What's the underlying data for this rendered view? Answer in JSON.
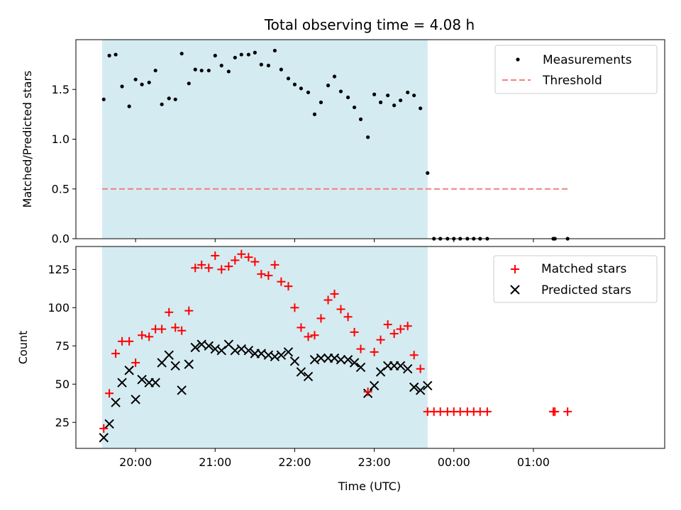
{
  "chart_data": [
    {
      "type": "scatter",
      "title": "Total observing time = 4.08 h",
      "ylabel": "Matched/Predicted stars",
      "ylim": [
        0,
        2.0
      ],
      "yticks": [
        0.0,
        0.5,
        1.0,
        1.5
      ],
      "ytick_labels": [
        "0.0",
        "0.5",
        "1.0",
        "1.5"
      ],
      "xlim_hours": [
        19.25,
        26.65
      ],
      "shaded_span_hours": [
        19.58,
        23.67
      ],
      "shade_color": "#d4ebf1",
      "legend": {
        "placement": "top-right",
        "entries": [
          "Measurements",
          "Threshold"
        ]
      },
      "series": [
        {
          "name": "Measurements",
          "marker": "dot",
          "color": "#000000",
          "x_hours": [
            19.6,
            19.67,
            19.75,
            19.83,
            19.92,
            20.0,
            20.08,
            20.17,
            20.25,
            20.33,
            20.42,
            20.5,
            20.58,
            20.67,
            20.75,
            20.83,
            20.92,
            21.0,
            21.08,
            21.17,
            21.25,
            21.33,
            21.42,
            21.5,
            21.58,
            21.67,
            21.75,
            21.83,
            21.92,
            22.0,
            22.08,
            22.17,
            22.25,
            22.33,
            22.42,
            22.5,
            22.58,
            22.67,
            22.75,
            22.83,
            22.92,
            23.0,
            23.08,
            23.17,
            23.25,
            23.33,
            23.42,
            23.5,
            23.58,
            23.67,
            23.75,
            23.83,
            23.92,
            24.0,
            24.08,
            24.17,
            24.25,
            24.33,
            24.42,
            25.25,
            25.27,
            25.43
          ],
          "y": [
            1.4,
            1.84,
            1.85,
            1.53,
            1.33,
            1.6,
            1.55,
            1.57,
            1.69,
            1.35,
            1.41,
            1.4,
            1.86,
            1.56,
            1.7,
            1.69,
            1.69,
            1.84,
            1.74,
            1.68,
            1.82,
            1.85,
            1.85,
            1.87,
            1.75,
            1.74,
            1.89,
            1.7,
            1.61,
            1.55,
            1.51,
            1.47,
            1.25,
            1.37,
            1.54,
            1.63,
            1.48,
            1.42,
            1.32,
            1.2,
            1.02,
            1.45,
            1.37,
            1.44,
            1.34,
            1.39,
            1.47,
            1.44,
            1.31,
            0.66,
            0.0,
            0.0,
            0.0,
            0.0,
            0.0,
            0.0,
            0.0,
            0.0,
            0.0,
            0.0,
            0.0,
            0.0
          ]
        },
        {
          "name": "Threshold",
          "style": "dashed",
          "color": "#f08080",
          "x_hours": [
            19.58,
            25.43
          ],
          "y": [
            0.5,
            0.5
          ]
        }
      ]
    },
    {
      "type": "scatter",
      "xlabel": "Time (UTC)",
      "ylabel": "Count",
      "ylim": [
        8,
        140
      ],
      "yticks": [
        25,
        50,
        75,
        100,
        125
      ],
      "ytick_labels": [
        "25",
        "50",
        "75",
        "100",
        "125"
      ],
      "xlim_hours": [
        19.25,
        26.65
      ],
      "xticks_hours": [
        20,
        21,
        22,
        23,
        24,
        25
      ],
      "xtick_labels": [
        "20:00",
        "21:00",
        "22:00",
        "23:00",
        "00:00",
        "01:00"
      ],
      "shaded_span_hours": [
        19.58,
        23.67
      ],
      "shade_color": "#d4ebf1",
      "legend": {
        "placement": "top-right",
        "entries": [
          "Matched stars",
          "Predicted stars"
        ]
      },
      "series": [
        {
          "name": "Matched stars",
          "marker": "plus",
          "color": "#ff0000",
          "x_hours": [
            19.6,
            19.67,
            19.75,
            19.83,
            19.92,
            20.0,
            20.08,
            20.17,
            20.25,
            20.33,
            20.42,
            20.5,
            20.58,
            20.67,
            20.75,
            20.83,
            20.92,
            21.0,
            21.08,
            21.17,
            21.25,
            21.33,
            21.42,
            21.5,
            21.58,
            21.67,
            21.75,
            21.83,
            21.92,
            22.0,
            22.08,
            22.17,
            22.25,
            22.33,
            22.42,
            22.5,
            22.58,
            22.67,
            22.75,
            22.83,
            22.92,
            23.0,
            23.08,
            23.17,
            23.25,
            23.33,
            23.42,
            23.5,
            23.58,
            23.67,
            23.75,
            23.83,
            23.92,
            24.0,
            24.08,
            24.17,
            24.25,
            24.33,
            24.42,
            25.25,
            25.27,
            25.43
          ],
          "y": [
            21,
            44,
            70,
            78,
            78,
            64,
            82,
            81,
            86,
            86,
            97,
            87,
            85,
            98,
            126,
            128,
            126,
            134,
            125,
            127,
            131,
            135,
            133,
            130,
            122,
            121,
            128,
            117,
            114,
            100,
            87,
            81,
            82,
            93,
            105,
            109,
            99,
            94,
            84,
            73,
            45,
            71,
            79,
            89,
            83,
            86,
            88,
            69,
            60,
            32,
            32,
            32,
            32,
            32,
            32,
            32,
            32,
            32,
            32,
            32,
            32,
            32
          ]
        },
        {
          "name": "Predicted stars",
          "marker": "x",
          "color": "#000000",
          "x_hours": [
            19.6,
            19.67,
            19.75,
            19.83,
            19.92,
            20.0,
            20.08,
            20.17,
            20.25,
            20.33,
            20.42,
            20.5,
            20.58,
            20.67,
            20.75,
            20.83,
            20.92,
            21.0,
            21.08,
            21.17,
            21.25,
            21.33,
            21.42,
            21.5,
            21.58,
            21.67,
            21.75,
            21.83,
            21.92,
            22.0,
            22.08,
            22.17,
            22.25,
            22.33,
            22.42,
            22.5,
            22.58,
            22.67,
            22.75,
            22.83,
            22.92,
            23.0,
            23.08,
            23.17,
            23.25,
            23.33,
            23.42,
            23.5,
            23.58,
            23.67
          ],
          "y": [
            15,
            24,
            38,
            51,
            59,
            40,
            53,
            51,
            51,
            64,
            69,
            62,
            46,
            63,
            74,
            76,
            75,
            73,
            72,
            76,
            72,
            73,
            72,
            70,
            70,
            69,
            68,
            69,
            71,
            65,
            58,
            55,
            66,
            67,
            67,
            67,
            66,
            66,
            64,
            61,
            44,
            49,
            58,
            62,
            62,
            62,
            60,
            48,
            46,
            49
          ]
        }
      ]
    }
  ]
}
